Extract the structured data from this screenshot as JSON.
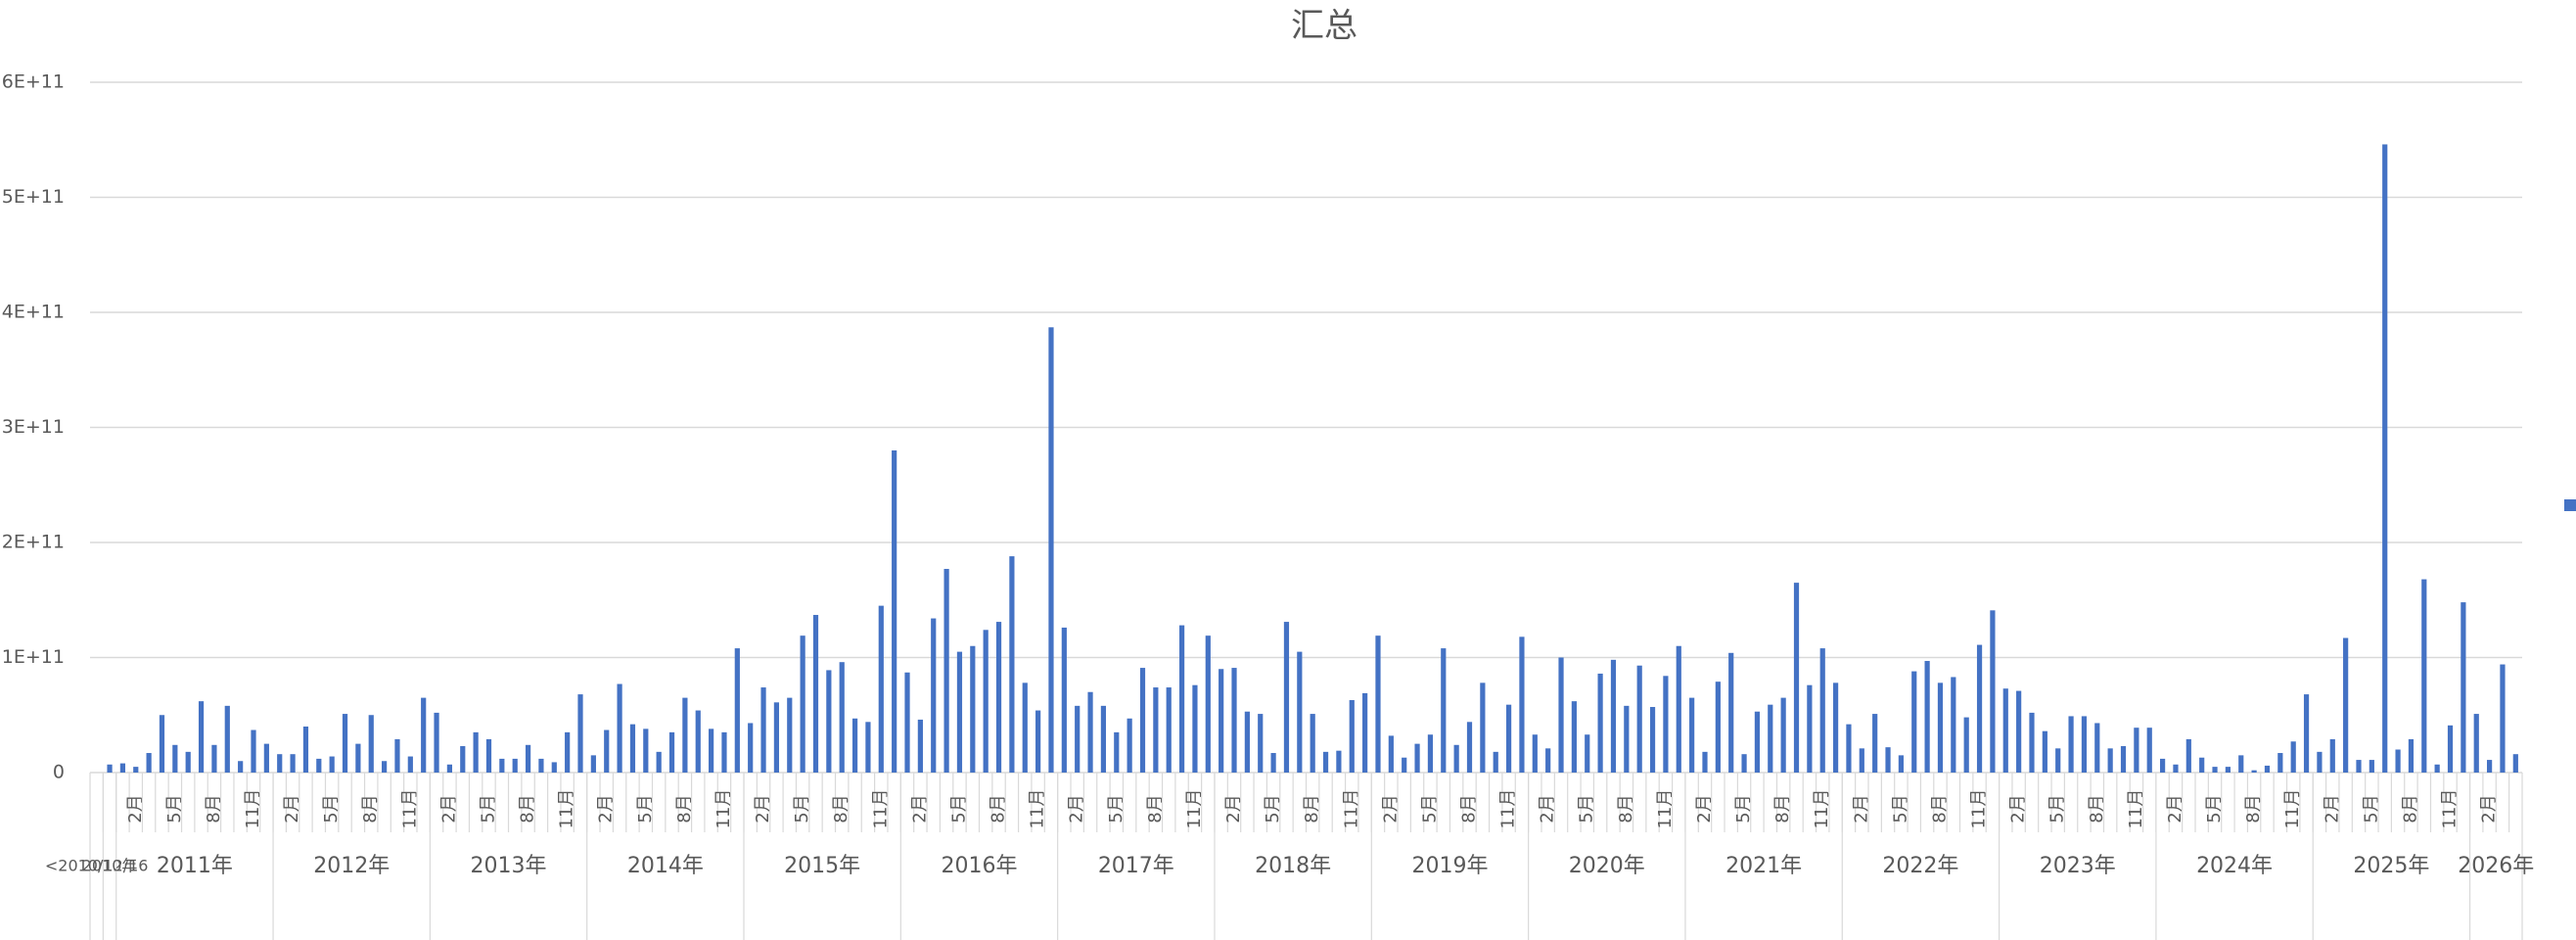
{
  "chart_data": {
    "type": "bar",
    "title": "汇总",
    "color": "#4472c4",
    "grid": true,
    "ylim": [
      0,
      600000000000.0
    ],
    "yticks": [
      0,
      {
        "value": 100000000000.0,
        "label": "1E+11"
      },
      {
        "value": 200000000000.0,
        "label": "2E+11"
      },
      {
        "value": 300000000000.0,
        "label": "3E+11"
      },
      {
        "value": 400000000000.0,
        "label": "4E+11"
      },
      {
        "value": 500000000000.0,
        "label": "5E+11"
      },
      {
        "value": 600000000000.0,
        "label": "6E+11"
      }
    ],
    "categories": [
      {
        "group": "<2010/12/16",
        "label": null
      },
      {
        "group": "2010年",
        "label": null
      },
      {
        "group": "2011年",
        "label": null
      },
      {
        "group": "2011年",
        "label": "2月"
      },
      {
        "group": "2011年",
        "label": null
      },
      {
        "group": "2011年",
        "label": null
      },
      {
        "group": "2011年",
        "label": "5月"
      },
      {
        "group": "2011年",
        "label": null
      },
      {
        "group": "2011年",
        "label": null
      },
      {
        "group": "2011年",
        "label": "8月"
      },
      {
        "group": "2011年",
        "label": null
      },
      {
        "group": "2011年",
        "label": null
      },
      {
        "group": "2011年",
        "label": "11月"
      },
      {
        "group": "2011年",
        "label": null
      },
      {
        "group": "2012年",
        "label": null
      },
      {
        "group": "2012年",
        "label": "2月"
      },
      {
        "group": "2012年",
        "label": null
      },
      {
        "group": "2012年",
        "label": null
      },
      {
        "group": "2012年",
        "label": "5月"
      },
      {
        "group": "2012年",
        "label": null
      },
      {
        "group": "2012年",
        "label": null
      },
      {
        "group": "2012年",
        "label": "8月"
      },
      {
        "group": "2012年",
        "label": null
      },
      {
        "group": "2012年",
        "label": null
      },
      {
        "group": "2012年",
        "label": "11月"
      },
      {
        "group": "2012年",
        "label": null
      },
      {
        "group": "2013年",
        "label": null
      },
      {
        "group": "2013年",
        "label": "2月"
      },
      {
        "group": "2013年",
        "label": null
      },
      {
        "group": "2013年",
        "label": null
      },
      {
        "group": "2013年",
        "label": "5月"
      },
      {
        "group": "2013年",
        "label": null
      },
      {
        "group": "2013年",
        "label": null
      },
      {
        "group": "2013年",
        "label": "8月"
      },
      {
        "group": "2013年",
        "label": null
      },
      {
        "group": "2013年",
        "label": null
      },
      {
        "group": "2013年",
        "label": "11月"
      },
      {
        "group": "2013年",
        "label": null
      },
      {
        "group": "2014年",
        "label": null
      },
      {
        "group": "2014年",
        "label": "2月"
      },
      {
        "group": "2014年",
        "label": null
      },
      {
        "group": "2014年",
        "label": null
      },
      {
        "group": "2014年",
        "label": "5月"
      },
      {
        "group": "2014年",
        "label": null
      },
      {
        "group": "2014年",
        "label": null
      },
      {
        "group": "2014年",
        "label": "8月"
      },
      {
        "group": "2014年",
        "label": null
      },
      {
        "group": "2014年",
        "label": null
      },
      {
        "group": "2014年",
        "label": "11月"
      },
      {
        "group": "2014年",
        "label": null
      },
      {
        "group": "2015年",
        "label": null
      },
      {
        "group": "2015年",
        "label": "2月"
      },
      {
        "group": "2015年",
        "label": null
      },
      {
        "group": "2015年",
        "label": null
      },
      {
        "group": "2015年",
        "label": "5月"
      },
      {
        "group": "2015年",
        "label": null
      },
      {
        "group": "2015年",
        "label": null
      },
      {
        "group": "2015年",
        "label": "8月"
      },
      {
        "group": "2015年",
        "label": null
      },
      {
        "group": "2015年",
        "label": null
      },
      {
        "group": "2015年",
        "label": "11月"
      },
      {
        "group": "2015年",
        "label": null
      },
      {
        "group": "2016年",
        "label": null
      },
      {
        "group": "2016年",
        "label": "2月"
      },
      {
        "group": "2016年",
        "label": null
      },
      {
        "group": "2016年",
        "label": null
      },
      {
        "group": "2016年",
        "label": "5月"
      },
      {
        "group": "2016年",
        "label": null
      },
      {
        "group": "2016年",
        "label": null
      },
      {
        "group": "2016年",
        "label": "8月"
      },
      {
        "group": "2016年",
        "label": null
      },
      {
        "group": "2016年",
        "label": null
      },
      {
        "group": "2016年",
        "label": "11月"
      },
      {
        "group": "2016年",
        "label": null
      },
      {
        "group": "2017年",
        "label": null
      },
      {
        "group": "2017年",
        "label": "2月"
      },
      {
        "group": "2017年",
        "label": null
      },
      {
        "group": "2017年",
        "label": null
      },
      {
        "group": "2017年",
        "label": "5月"
      },
      {
        "group": "2017年",
        "label": null
      },
      {
        "group": "2017年",
        "label": null
      },
      {
        "group": "2017年",
        "label": "8月"
      },
      {
        "group": "2017年",
        "label": null
      },
      {
        "group": "2017年",
        "label": null
      },
      {
        "group": "2017年",
        "label": "11月"
      },
      {
        "group": "2017年",
        "label": null
      },
      {
        "group": "2018年",
        "label": null
      },
      {
        "group": "2018年",
        "label": "2月"
      },
      {
        "group": "2018年",
        "label": null
      },
      {
        "group": "2018年",
        "label": null
      },
      {
        "group": "2018年",
        "label": "5月"
      },
      {
        "group": "2018年",
        "label": null
      },
      {
        "group": "2018年",
        "label": null
      },
      {
        "group": "2018年",
        "label": "8月"
      },
      {
        "group": "2018年",
        "label": null
      },
      {
        "group": "2018年",
        "label": null
      },
      {
        "group": "2018年",
        "label": "11月"
      },
      {
        "group": "2018年",
        "label": null
      },
      {
        "group": "2019年",
        "label": null
      },
      {
        "group": "2019年",
        "label": "2月"
      },
      {
        "group": "2019年",
        "label": null
      },
      {
        "group": "2019年",
        "label": null
      },
      {
        "group": "2019年",
        "label": "5月"
      },
      {
        "group": "2019年",
        "label": null
      },
      {
        "group": "2019年",
        "label": null
      },
      {
        "group": "2019年",
        "label": "8月"
      },
      {
        "group": "2019年",
        "label": null
      },
      {
        "group": "2019年",
        "label": null
      },
      {
        "group": "2019年",
        "label": "11月"
      },
      {
        "group": "2019年",
        "label": null
      },
      {
        "group": "2020年",
        "label": null
      },
      {
        "group": "2020年",
        "label": "2月"
      },
      {
        "group": "2020年",
        "label": null
      },
      {
        "group": "2020年",
        "label": null
      },
      {
        "group": "2020年",
        "label": "5月"
      },
      {
        "group": "2020年",
        "label": null
      },
      {
        "group": "2020年",
        "label": null
      },
      {
        "group": "2020年",
        "label": "8月"
      },
      {
        "group": "2020年",
        "label": null
      },
      {
        "group": "2020年",
        "label": null
      },
      {
        "group": "2020年",
        "label": "11月"
      },
      {
        "group": "2020年",
        "label": null
      },
      {
        "group": "2021年",
        "label": null
      },
      {
        "group": "2021年",
        "label": "2月"
      },
      {
        "group": "2021年",
        "label": null
      },
      {
        "group": "2021年",
        "label": null
      },
      {
        "group": "2021年",
        "label": "5月"
      },
      {
        "group": "2021年",
        "label": null
      },
      {
        "group": "2021年",
        "label": null
      },
      {
        "group": "2021年",
        "label": "8月"
      },
      {
        "group": "2021年",
        "label": null
      },
      {
        "group": "2021年",
        "label": null
      },
      {
        "group": "2021年",
        "label": "11月"
      },
      {
        "group": "2021年",
        "label": null
      },
      {
        "group": "2022年",
        "label": null
      },
      {
        "group": "2022年",
        "label": "2月"
      },
      {
        "group": "2022年",
        "label": null
      },
      {
        "group": "2022年",
        "label": null
      },
      {
        "group": "2022年",
        "label": "5月"
      },
      {
        "group": "2022年",
        "label": null
      },
      {
        "group": "2022年",
        "label": null
      },
      {
        "group": "2022年",
        "label": "8月"
      },
      {
        "group": "2022年",
        "label": null
      },
      {
        "group": "2022年",
        "label": null
      },
      {
        "group": "2022年",
        "label": "11月"
      },
      {
        "group": "2022年",
        "label": null
      },
      {
        "group": "2023年",
        "label": null
      },
      {
        "group": "2023年",
        "label": "2月"
      },
      {
        "group": "2023年",
        "label": null
      },
      {
        "group": "2023年",
        "label": null
      },
      {
        "group": "2023年",
        "label": "5月"
      },
      {
        "group": "2023年",
        "label": null
      },
      {
        "group": "2023年",
        "label": null
      },
      {
        "group": "2023年",
        "label": "8月"
      },
      {
        "group": "2023年",
        "label": null
      },
      {
        "group": "2023年",
        "label": null
      },
      {
        "group": "2023年",
        "label": "11月"
      },
      {
        "group": "2023年",
        "label": null
      },
      {
        "group": "2024年",
        "label": null
      },
      {
        "group": "2024年",
        "label": "2月"
      },
      {
        "group": "2024年",
        "label": null
      },
      {
        "group": "2024年",
        "label": null
      },
      {
        "group": "2024年",
        "label": "5月"
      },
      {
        "group": "2024年",
        "label": null
      },
      {
        "group": "2024年",
        "label": null
      },
      {
        "group": "2024年",
        "label": "8月"
      },
      {
        "group": "2024年",
        "label": null
      },
      {
        "group": "2024年",
        "label": null
      },
      {
        "group": "2024年",
        "label": "11月"
      },
      {
        "group": "2024年",
        "label": null
      },
      {
        "group": "2025年",
        "label": null
      },
      {
        "group": "2025年",
        "label": "2月"
      },
      {
        "group": "2025年",
        "label": null
      },
      {
        "group": "2025年",
        "label": null
      },
      {
        "group": "2025年",
        "label": "5月"
      },
      {
        "group": "2025年",
        "label": null
      },
      {
        "group": "2025年",
        "label": null
      },
      {
        "group": "2025年",
        "label": "8月"
      },
      {
        "group": "2025年",
        "label": null
      },
      {
        "group": "2025年",
        "label": null
      },
      {
        "group": "2025年",
        "label": "11月"
      },
      {
        "group": "2025年",
        "label": null
      },
      {
        "group": "2026年",
        "label": null
      },
      {
        "group": "2026年",
        "label": "2月"
      },
      {
        "group": "2026年",
        "label": null
      },
      {
        "group": "2026年",
        "label": null
      }
    ],
    "values": [
      0,
      7000000000.0,
      8000000000.0,
      5000000000.0,
      17000000000.0,
      50000000000.0,
      24000000000.0,
      18000000000.0,
      62000000000.0,
      24000000000.0,
      58000000000.0,
      10000000000.0,
      37000000000.0,
      25000000000.0,
      16000000000.0,
      16000000000.0,
      40000000000.0,
      12000000000.0,
      14000000000.0,
      51000000000.0,
      25000000000.0,
      50000000000.0,
      10000000000.0,
      29000000000.0,
      14000000000.0,
      65000000000.0,
      52000000000.0,
      7000000000.0,
      23000000000.0,
      35000000000.0,
      29000000000.0,
      12000000000.0,
      12000000000.0,
      24000000000.0,
      12000000000.0,
      9000000000.0,
      35000000000.0,
      68000000000.0,
      15000000000.0,
      37000000000.0,
      77000000000.0,
      42000000000.0,
      38000000000.0,
      18000000000.0,
      35000000000.0,
      65000000000.0,
      54000000000.0,
      38000000000.0,
      35000000000.0,
      108000000000.0,
      43000000000.0,
      74000000000.0,
      61000000000.0,
      65000000000.0,
      119000000000.0,
      137000000000.0,
      89000000000.0,
      96000000000.0,
      47000000000.0,
      44000000000.0,
      145000000000.0,
      280000000000.0,
      87000000000.0,
      46000000000.0,
      134000000000.0,
      177000000000.0,
      105000000000.0,
      110000000000.0,
      124000000000.0,
      131000000000.0,
      188000000000.0,
      78000000000.0,
      54000000000.0,
      387000000000.0,
      126000000000.0,
      58000000000.0,
      70000000000.0,
      58000000000.0,
      35000000000.0,
      47000000000.0,
      91000000000.0,
      74000000000.0,
      74000000000.0,
      128000000000.0,
      76000000000.0,
      119000000000.0,
      90000000000.0,
      91000000000.0,
      53000000000.0,
      51000000000.0,
      17000000000.0,
      131000000000.0,
      105000000000.0,
      51000000000.0,
      18000000000.0,
      19000000000.0,
      63000000000.0,
      69000000000.0,
      119000000000.0,
      32000000000.0,
      13000000000.0,
      25000000000.0,
      33000000000.0,
      108000000000.0,
      24000000000.0,
      44000000000.0,
      78000000000.0,
      18000000000.0,
      59000000000.0,
      118000000000.0,
      33000000000.0,
      21000000000.0,
      100000000000.0,
      62000000000.0,
      33000000000.0,
      86000000000.0,
      98000000000.0,
      58000000000.0,
      93000000000.0,
      57000000000.0,
      84000000000.0,
      110000000000.0,
      65000000000.0,
      18000000000.0,
      79000000000.0,
      104000000000.0,
      16000000000.0,
      53000000000.0,
      59000000000.0,
      65000000000.0,
      165000000000.0,
      76000000000.0,
      108000000000.0,
      78000000000.0,
      42000000000.0,
      21000000000.0,
      51000000000.0,
      22000000000.0,
      15000000000.0,
      88000000000.0,
      97000000000.0,
      78000000000.0,
      83000000000.0,
      48000000000.0,
      111000000000.0,
      141000000000.0,
      73000000000.0,
      71000000000.0,
      52000000000.0,
      36000000000.0,
      21000000000.0,
      49000000000.0,
      49000000000.0,
      43000000000.0,
      21000000000.0,
      23000000000.0,
      39000000000.0,
      39000000000.0,
      12000000000.0,
      7000000000.0,
      29000000000.0,
      13000000000.0,
      5000000000.0,
      5000000000.0,
      15000000000.0,
      2000000000.0,
      6000000000.0,
      17000000000.0,
      27000000000.0,
      68000000000.0,
      18000000000.0,
      29000000000.0,
      117000000000.0,
      11000000000.0,
      11000000000.0,
      546000000000.0,
      20000000000.0,
      29000000000.0,
      168000000000.0,
      7000000000.0,
      41000000000.0,
      148000000000.0,
      51000000000.0,
      11000000000.0,
      94000000000.0,
      16000000000.0
    ]
  }
}
